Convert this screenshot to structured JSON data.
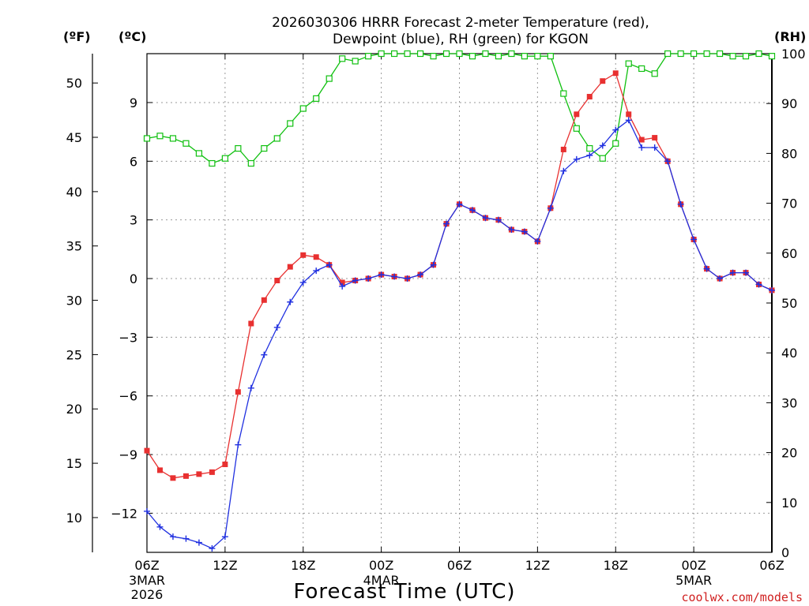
{
  "chart_data": {
    "type": "line",
    "title_line1": "2026030306 HRRR Forecast 2-meter Temperature (red),",
    "title_line2": "Dewpoint (blue), RH (green) for KGON",
    "xlabel": "Forecast Time (UTC)",
    "credit": "coolwx.com/models",
    "unit_f": "(ºF)",
    "unit_c": "(ºC)",
    "unit_rh": "(RH)",
    "x_range_hours": [
      0,
      48
    ],
    "c_range": [
      -14.0,
      11.5
    ],
    "rh_range": [
      0,
      100
    ],
    "f_ticks": [
      10,
      15,
      20,
      25,
      30,
      35,
      40,
      45,
      50
    ],
    "c_ticks": [
      -12,
      -9,
      -6,
      -3,
      0,
      3,
      6,
      9
    ],
    "rh_ticks": [
      0,
      10,
      20,
      30,
      40,
      50,
      60,
      70,
      80,
      90,
      100
    ],
    "x_ticks": [
      {
        "hour": 0,
        "label": "06Z"
      },
      {
        "hour": 6,
        "label": "12Z"
      },
      {
        "hour": 12,
        "label": "18Z"
      },
      {
        "hour": 18,
        "label": "00Z"
      },
      {
        "hour": 24,
        "label": "06Z"
      },
      {
        "hour": 30,
        "label": "12Z"
      },
      {
        "hour": 36,
        "label": "18Z"
      },
      {
        "hour": 42,
        "label": "00Z"
      },
      {
        "hour": 48,
        "label": "06Z"
      }
    ],
    "date_labels": [
      {
        "hour": 0,
        "lines": [
          "3MAR",
          "2026"
        ]
      },
      {
        "hour": 18,
        "lines": [
          "4MAR"
        ]
      },
      {
        "hour": 42,
        "lines": [
          "5MAR"
        ]
      }
    ],
    "series": [
      {
        "name": "Temperature",
        "color": "#e83030",
        "marker": "filled-square",
        "values": [
          -8.8,
          -9.8,
          -10.2,
          -10.1,
          -10.0,
          -9.9,
          -9.5,
          -5.8,
          -2.3,
          -1.1,
          -0.1,
          0.6,
          1.2,
          1.1,
          0.7,
          -0.2,
          -0.1,
          0.0,
          0.2,
          0.1,
          0.0,
          0.2,
          0.7,
          2.8,
          3.8,
          3.5,
          3.1,
          3.0,
          2.5,
          2.4,
          1.9,
          3.6,
          6.6,
          8.4,
          9.3,
          10.1,
          10.5,
          8.4,
          7.1,
          7.2,
          6.0,
          3.8,
          2.0,
          0.5,
          0.0,
          0.3,
          0.3,
          -0.3,
          -0.6
        ]
      },
      {
        "name": "Dewpoint",
        "color": "#2030e0",
        "marker": "plus",
        "values": [
          -11.9,
          -12.7,
          -13.2,
          -13.3,
          -13.5,
          -13.8,
          -13.2,
          -8.5,
          -5.6,
          -3.9,
          -2.5,
          -1.2,
          -0.2,
          0.4,
          0.7,
          -0.4,
          -0.1,
          0.0,
          0.2,
          0.1,
          0.0,
          0.2,
          0.7,
          2.8,
          3.8,
          3.5,
          3.1,
          3.0,
          2.5,
          2.4,
          1.9,
          3.6,
          5.5,
          6.1,
          6.3,
          6.8,
          7.6,
          8.1,
          6.7,
          6.7,
          6.0,
          3.8,
          2.0,
          0.5,
          0.0,
          0.3,
          0.3,
          -0.3,
          -0.6
        ]
      },
      {
        "name": "RH",
        "color": "#10c010",
        "marker": "open-square",
        "values": [
          83,
          83.5,
          83,
          82,
          80,
          78,
          79,
          81,
          78,
          81,
          83,
          86,
          89,
          91,
          95,
          99,
          98.5,
          99.5,
          100,
          100,
          100,
          100,
          99.5,
          100,
          100,
          99.5,
          100,
          99.5,
          100,
          99.5,
          99.5,
          99.5,
          92,
          85,
          81,
          79,
          82,
          98,
          97,
          96,
          100,
          100,
          100,
          100,
          100,
          99.5,
          99.5,
          100,
          99.5
        ]
      }
    ]
  }
}
